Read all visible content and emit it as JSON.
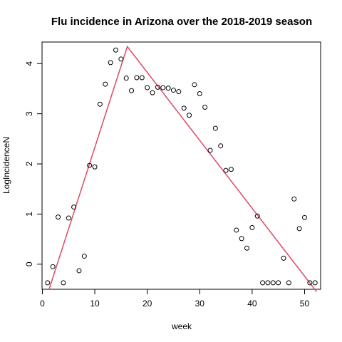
{
  "chart_data": {
    "type": "scatter",
    "title": "Flu incidence in Arizona over the 2018-2019 season",
    "xlabel": "week",
    "ylabel": "LogIncidenceN",
    "xlim": [
      -0.06,
      53.06
    ],
    "ylim": [
      -0.5,
      4.43
    ],
    "xticks": [
      0,
      10,
      20,
      30,
      40,
      50
    ],
    "yticks": [
      0,
      1,
      2,
      3,
      4
    ],
    "grid": false,
    "legend": "none",
    "points": [
      [
        1,
        -0.37
      ],
      [
        2,
        -0.05
      ],
      [
        3,
        0.94
      ],
      [
        4,
        -0.37
      ],
      [
        5,
        0.92
      ],
      [
        6,
        1.14
      ],
      [
        7,
        -0.13
      ],
      [
        8,
        0.16
      ],
      [
        9,
        1.97
      ],
      [
        10,
        1.94
      ],
      [
        11,
        3.19
      ],
      [
        12,
        3.59
      ],
      [
        13,
        4.02
      ],
      [
        14,
        4.27
      ],
      [
        15,
        4.09
      ],
      [
        16,
        3.71
      ],
      [
        17,
        3.46
      ],
      [
        18,
        3.72
      ],
      [
        19,
        3.72
      ],
      [
        20,
        3.52
      ],
      [
        21,
        3.42
      ],
      [
        22,
        3.53
      ],
      [
        23,
        3.52
      ],
      [
        24,
        3.51
      ],
      [
        25,
        3.47
      ],
      [
        26,
        3.44
      ],
      [
        27,
        3.11
      ],
      [
        28,
        2.97
      ],
      [
        29,
        3.58
      ],
      [
        30,
        3.4
      ],
      [
        31,
        3.13
      ],
      [
        32,
        2.27
      ],
      [
        33,
        2.71
      ],
      [
        34,
        2.36
      ],
      [
        35,
        1.87
      ],
      [
        36,
        1.89
      ],
      [
        37,
        0.68
      ],
      [
        38,
        0.51
      ],
      [
        39,
        0.32
      ],
      [
        40,
        0.73
      ],
      [
        41,
        0.96
      ],
      [
        42,
        -0.37
      ],
      [
        43,
        -0.37
      ],
      [
        44,
        -0.37
      ],
      [
        45,
        -0.37
      ],
      [
        46,
        0.12
      ],
      [
        47,
        -0.37
      ],
      [
        48,
        1.3
      ],
      [
        49,
        0.71
      ],
      [
        50,
        0.93
      ],
      [
        51,
        -0.37
      ],
      [
        52,
        -0.37
      ]
    ],
    "fit_line": {
      "color": "#DF536B",
      "points": [
        [
          1.29,
          -0.5
        ],
        [
          16.2,
          4.34
        ],
        [
          52.3,
          -0.55
        ]
      ]
    }
  }
}
